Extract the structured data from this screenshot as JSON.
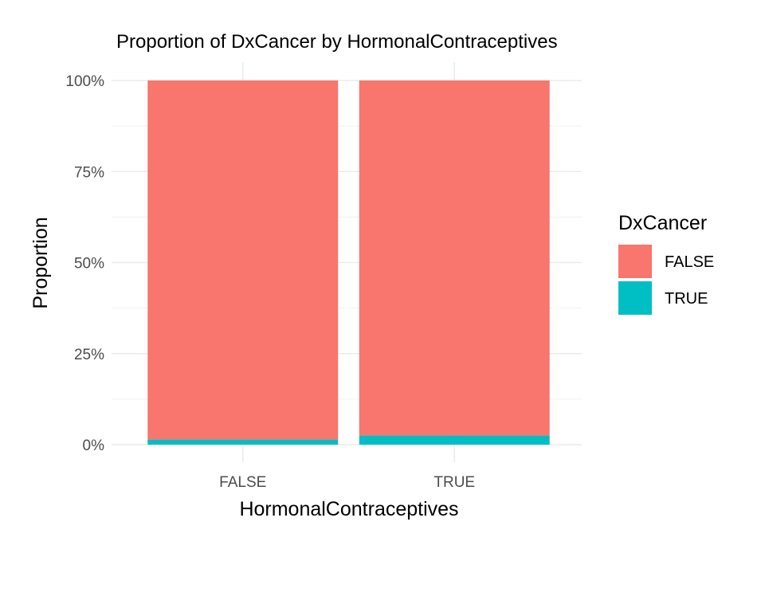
{
  "chart_data": {
    "type": "bar",
    "stacked": true,
    "title": "Proportion of DxCancer by HormonalContraceptives",
    "xlabel": "HormonalContraceptives",
    "ylabel": "Proportion",
    "categories": [
      "FALSE",
      "TRUE"
    ],
    "series": [
      {
        "name": "FALSE",
        "color": "#F8766D",
        "values": [
          0.986,
          0.975
        ]
      },
      {
        "name": "TRUE",
        "color": "#00BFC4",
        "values": [
          0.014,
          0.025
        ]
      }
    ],
    "ylim": [
      0,
      1
    ],
    "y_ticks": [
      0,
      0.25,
      0.5,
      0.75,
      1
    ],
    "y_tick_labels": [
      "0%",
      "25%",
      "50%",
      "75%",
      "100%"
    ],
    "grid": true,
    "legend": {
      "title": "DxCancer",
      "position": "right"
    }
  }
}
